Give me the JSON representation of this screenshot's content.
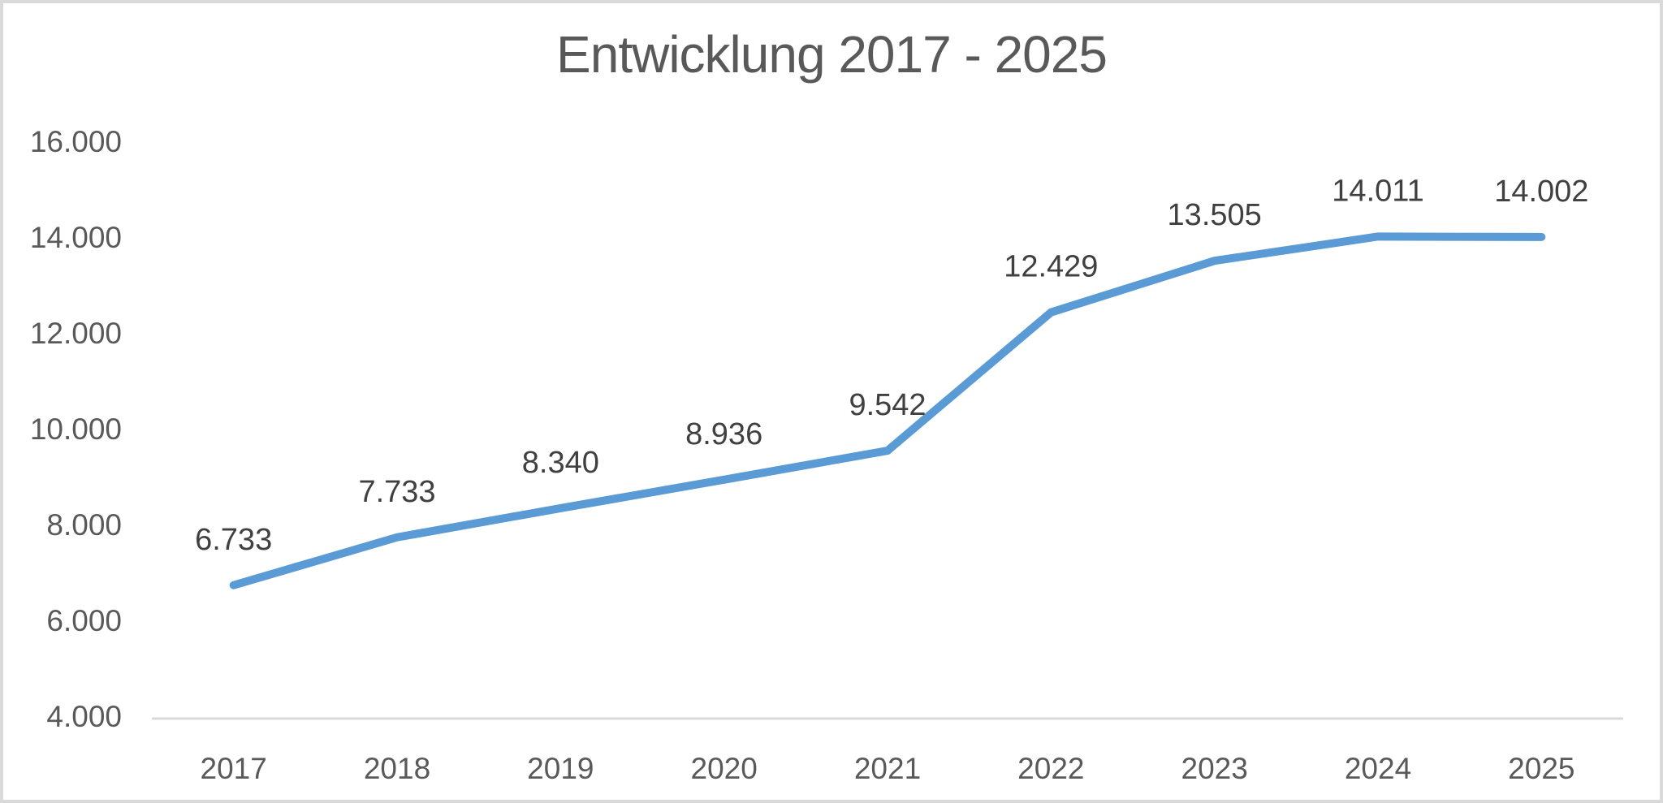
{
  "chart_data": {
    "type": "line",
    "title": "Entwicklung 2017 - 2025",
    "categories": [
      "2017",
      "2018",
      "2019",
      "2020",
      "2021",
      "2022",
      "2023",
      "2024",
      "2025"
    ],
    "series": [
      {
        "name": "Entwicklung",
        "values": [
          6733,
          7733,
          8340,
          8936,
          9542,
          12429,
          13505,
          14011,
          14002
        ],
        "data_labels": [
          "6.733",
          "7.733",
          "8.340",
          "8.936",
          "9.542",
          "12.429",
          "13.505",
          "14.011",
          "14.002"
        ]
      }
    ],
    "xlabel": "",
    "ylabel": "",
    "ylim": [
      4000,
      16000
    ],
    "y_axis": {
      "ticks": [
        {
          "value": 16000,
          "label": "16.000"
        },
        {
          "value": 14000,
          "label": "14.000"
        },
        {
          "value": 12000,
          "label": "12.000"
        },
        {
          "value": 10000,
          "label": "10.000"
        },
        {
          "value": 8000,
          "label": "8.000"
        },
        {
          "value": 6000,
          "label": "6.000"
        },
        {
          "value": 4000,
          "label": "4.000"
        }
      ]
    },
    "grid": "off",
    "legend": "none",
    "colors": {
      "line": "#5b9bd5",
      "title_text": "#595959",
      "axis_tick_text": "#595959",
      "data_label_text": "#404040",
      "axis_line": "#d9d9d9",
      "frame_border": "#d9d9d9",
      "background": "#ffffff"
    }
  }
}
